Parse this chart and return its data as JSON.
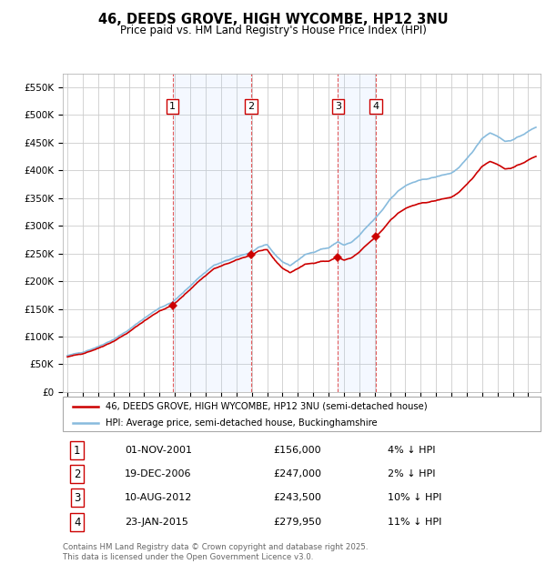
{
  "title": "46, DEEDS GROVE, HIGH WYCOMBE, HP12 3NU",
  "subtitle": "Price paid vs. HM Land Registry's House Price Index (HPI)",
  "ylim": [
    0,
    575000
  ],
  "yticks": [
    0,
    50000,
    100000,
    150000,
    200000,
    250000,
    300000,
    350000,
    400000,
    450000,
    500000,
    550000
  ],
  "ytick_labels": [
    "£0",
    "£50K",
    "£100K",
    "£150K",
    "£200K",
    "£250K",
    "£300K",
    "£350K",
    "£400K",
    "£450K",
    "£500K",
    "£550K"
  ],
  "background_color": "#ffffff",
  "plot_bg_color": "#ffffff",
  "grid_color": "#cccccc",
  "hpi_color": "#88bbdd",
  "price_color": "#cc0000",
  "transactions": [
    {
      "date": 2001.84,
      "price": 156000,
      "label": "1"
    },
    {
      "date": 2006.97,
      "price": 247000,
      "label": "2"
    },
    {
      "date": 2012.61,
      "price": 243500,
      "label": "3"
    },
    {
      "date": 2015.07,
      "price": 279950,
      "label": "4"
    }
  ],
  "transaction_details": [
    {
      "num": "1",
      "date": "01-NOV-2001",
      "price": "£156,000",
      "pct": "4% ↓ HPI"
    },
    {
      "num": "2",
      "date": "19-DEC-2006",
      "price": "£247,000",
      "pct": "2% ↓ HPI"
    },
    {
      "num": "3",
      "date": "10-AUG-2012",
      "price": "£243,500",
      "pct": "10% ↓ HPI"
    },
    {
      "num": "4",
      "date": "23-JAN-2015",
      "price": "£279,950",
      "pct": "11% ↓ HPI"
    }
  ],
  "legend_property_label": "46, DEEDS GROVE, HIGH WYCOMBE, HP12 3NU (semi-detached house)",
  "legend_hpi_label": "HPI: Average price, semi-detached house, Buckinghamshire",
  "footer": "Contains HM Land Registry data © Crown copyright and database right 2025.\nThis data is licensed under the Open Government Licence v3.0."
}
